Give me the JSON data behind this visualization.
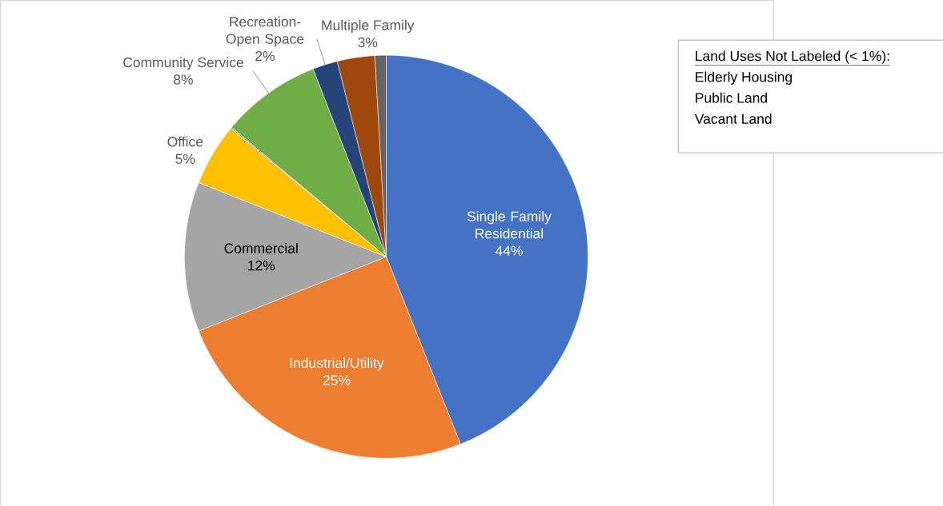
{
  "chart_data": {
    "type": "pie",
    "categories": [
      "Single Family Residential",
      "Industrial/Utility",
      "Commercial",
      "Office",
      null,
      "Community Service",
      "Recreation-Open Space",
      "Multiple Family",
      null
    ],
    "values": [
      44,
      25,
      12,
      5,
      0.1,
      8,
      2,
      3,
      0.9
    ],
    "value_labels": [
      "44%",
      "25%",
      "12%",
      "5%",
      null,
      "8%",
      "2%",
      "3%",
      null
    ],
    "colors": [
      "#4472c4",
      "#ed7d31",
      "#a5a5a5",
      "#ffc000",
      "#5b9bd5",
      "#70ad47",
      "#264478",
      "#9e480e",
      "#636363"
    ],
    "annotations": [
      "Land Uses Not Labeled (< 1%):",
      "Elderly Housing",
      "Public Land",
      "Vacant Land"
    ]
  }
}
